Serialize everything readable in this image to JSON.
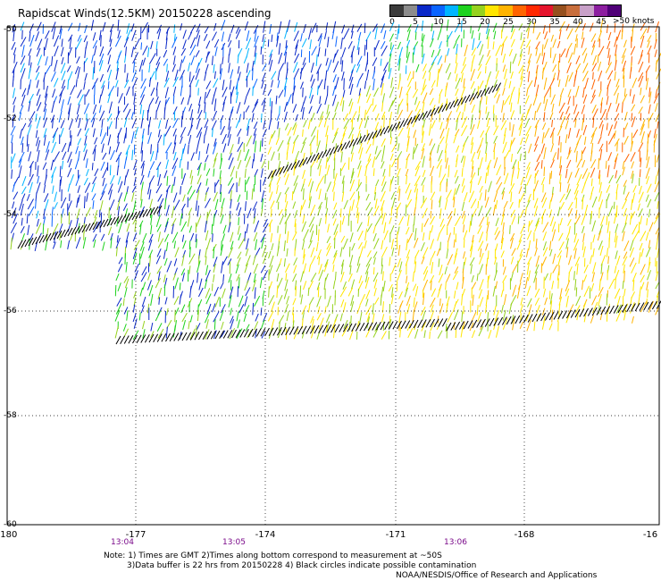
{
  "title": "Rapidscat Winds(12.5KM) 20150228 ascending",
  "legend": {
    "colors": [
      "#3b3b3b",
      "#8c8c8c",
      "#0a28c8",
      "#0a64ff",
      "#00b4ff",
      "#1ed21e",
      "#96d21e",
      "#ffe600",
      "#ffb400",
      "#ff6400",
      "#ff2800",
      "#e6142d",
      "#96501e",
      "#c86e3c",
      "#c8a0c8",
      "#8c1ea0",
      "#500078"
    ],
    "labels": [
      "0",
      "5",
      "10",
      "15",
      "20",
      "25",
      "30",
      "35",
      "40",
      "45"
    ],
    "max_label": ">50 knots"
  },
  "y_labels": [
    "-50",
    "-52",
    "-54",
    "-56",
    "-58",
    "-60"
  ],
  "x_labels": [
    "-180",
    "-177",
    "-174",
    "-171",
    "-168",
    "-16"
  ],
  "time_labels": [
    "13:04",
    "13:05",
    "13:06"
  ],
  "notes": {
    "line1": "Note: 1) Times are GMT 2)Times along bottom correspond to measurement at ~50S",
    "line2": "3)Data buffer is 22 hrs from 20150228 4) Black circles indicate possible contamination",
    "line3": "NOAA/NESDIS/Office of Research and Applications"
  }
}
